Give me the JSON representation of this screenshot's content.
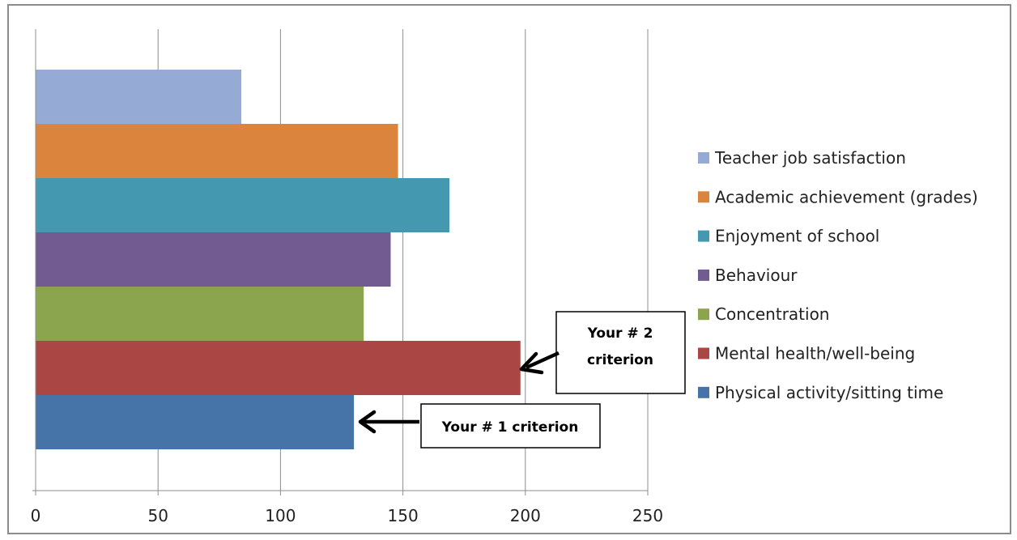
{
  "chart_data": {
    "type": "bar",
    "orientation": "horizontal",
    "title": "",
    "xlabel": "",
    "ylabel": "",
    "xlim": [
      0,
      250
    ],
    "x_ticks": [
      0,
      50,
      100,
      150,
      200,
      250
    ],
    "grid": "vertical",
    "legend_position": "right",
    "categories": [
      "Teacher job satisfaction",
      "Academic achievement (grades)",
      "Enjoyment of school",
      "Behaviour",
      "Concentration",
      "Mental health/well-being",
      "Physical activity/sitting time"
    ],
    "values": [
      84,
      148,
      169,
      145,
      134,
      198,
      130
    ],
    "colors": [
      "#95abd5",
      "#db843d",
      "#4499b0",
      "#725b91",
      "#8ba54e",
      "#aa4644",
      "#4674a9"
    ],
    "annotations": [
      {
        "line1": "Your # 2",
        "line2": "criterion",
        "target": "Mental health/well-being"
      },
      {
        "line1": "Your # 1 criterion",
        "line2": "",
        "target": "Physical activity/sitting time"
      }
    ]
  }
}
